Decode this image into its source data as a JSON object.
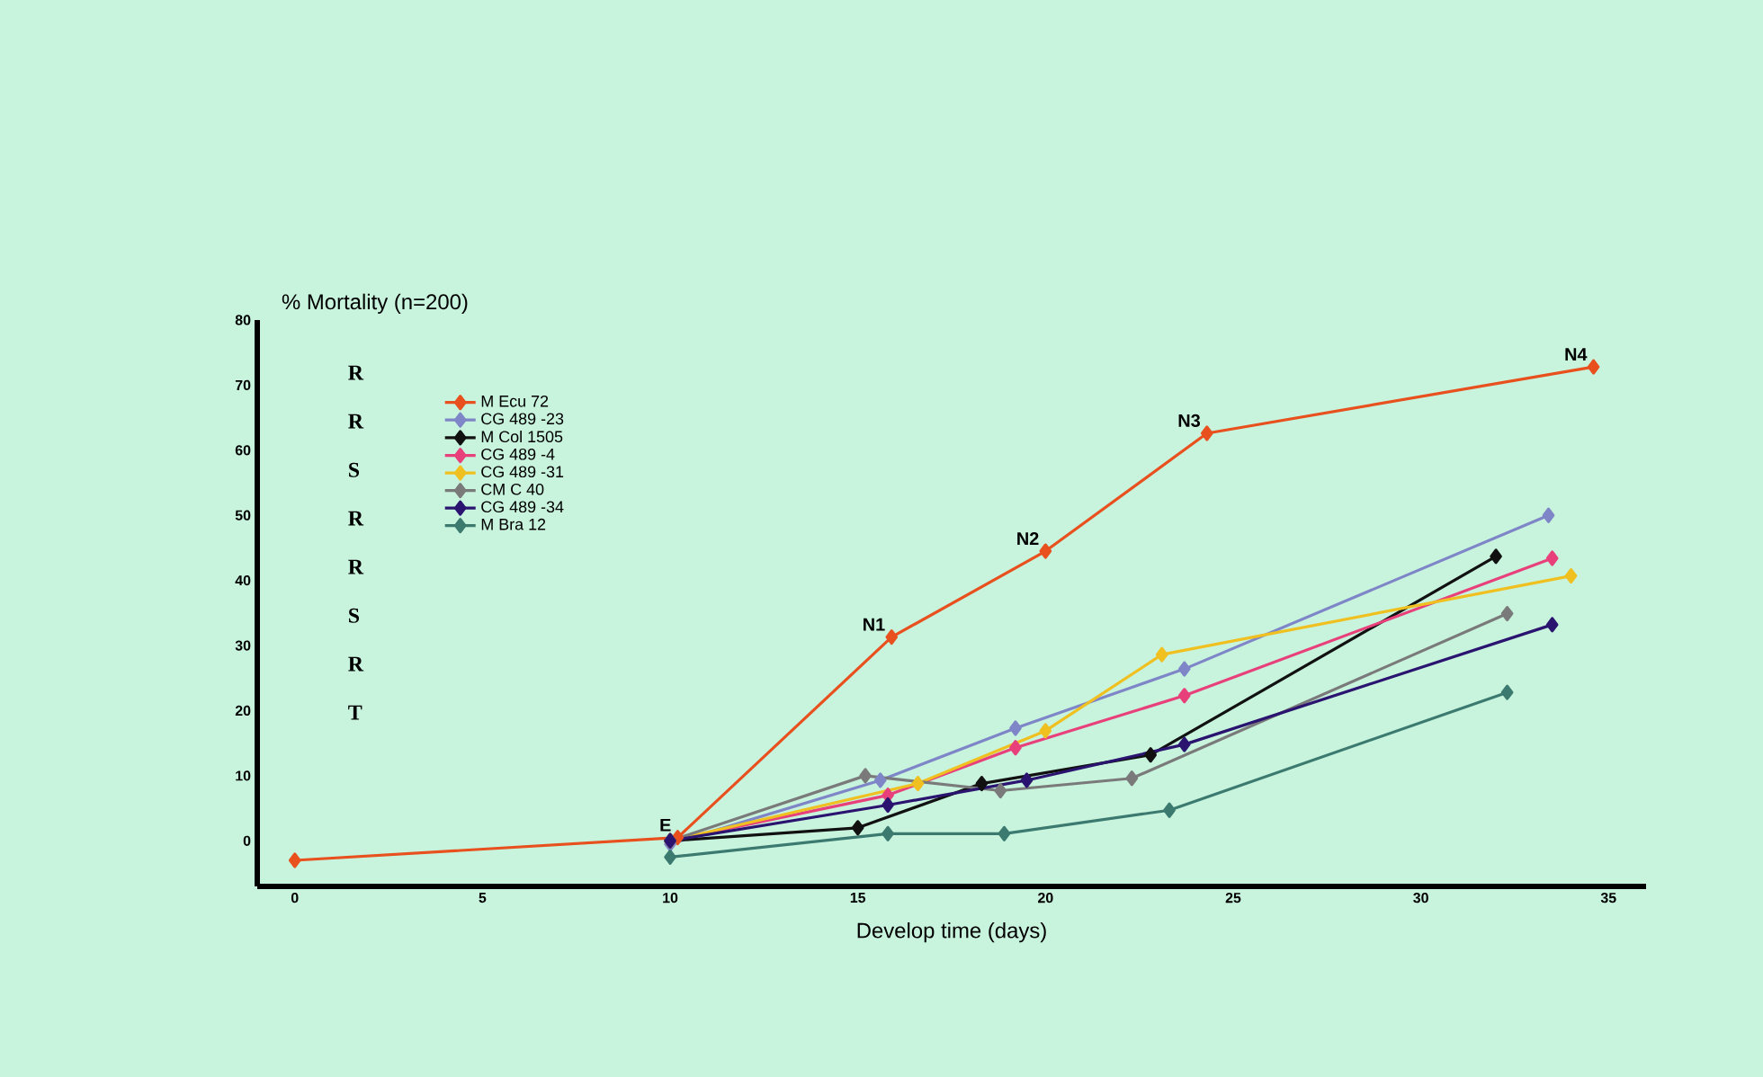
{
  "chart_data": {
    "type": "line",
    "xlabel": "Develop time (days)",
    "ylabel": "% Mortality (n=200)",
    "xlim": [
      -1,
      36
    ],
    "ylim": [
      -7,
      80
    ],
    "xticks": [
      0,
      5,
      10,
      15,
      20,
      25,
      30,
      35
    ],
    "yticks": [
      0,
      10,
      20,
      30,
      40,
      50,
      60,
      70,
      80
    ],
    "grid": false,
    "legend": "top left",
    "marker": "diamond",
    "line_style": "solid",
    "series": [
      {
        "name": "M Ecu 72",
        "color": "#e8501e",
        "x": [
          0,
          10.2,
          15.9,
          20,
          24.3,
          34.6
        ],
        "values": [
          -3,
          0.5,
          31.3,
          44.5,
          62.6,
          72.8
        ]
      },
      {
        "name": "CG 489  -23",
        "color": "#7f86c8",
        "x": [
          10,
          15.6,
          19.2,
          23.7,
          33.4
        ],
        "values": [
          -0.5,
          9.3,
          17.3,
          26.4,
          50
        ]
      },
      {
        "name": "M Col 1505",
        "color": "#111111",
        "x": [
          10,
          15,
          18.3,
          22.8,
          32
        ],
        "values": [
          0,
          2,
          8.8,
          13.2,
          43.7
        ]
      },
      {
        "name": "CG 489  -4",
        "color": "#e8407a",
        "x": [
          10,
          15.8,
          19.2,
          23.7,
          33.5
        ],
        "values": [
          0,
          7,
          14.3,
          22.3,
          43.4
        ]
      },
      {
        "name": "CG 489  -31",
        "color": "#f0c020",
        "x": [
          10,
          16.6,
          20,
          23.1,
          34
        ],
        "values": [
          0,
          8.8,
          16.9,
          28.6,
          40.7
        ]
      },
      {
        "name": "CM C 40",
        "color": "#7a7a7a",
        "x": [
          10,
          15.2,
          18.8,
          22.3,
          32.3
        ],
        "values": [
          0,
          10,
          7.7,
          9.6,
          34.9
        ]
      },
      {
        "name": "CG 489  -34",
        "color": "#2a1470",
        "x": [
          10,
          15.8,
          19.5,
          23.7,
          33.5
        ],
        "values": [
          0,
          5.5,
          9.3,
          14.8,
          33.2
        ]
      },
      {
        "name": "M Bra 12",
        "color": "#3c7a70",
        "x": [
          10,
          15.8,
          18.9,
          23.3,
          32.3
        ],
        "values": [
          -2.5,
          1.1,
          1.1,
          4.7,
          22.8
        ]
      }
    ],
    "annotations": [
      "R",
      "R",
      "S",
      "R",
      "R",
      "S",
      "R",
      "T",
      {
        "text": "E",
        "x": 10.2,
        "y": 0.5
      },
      {
        "text": "N1",
        "x": 15.9,
        "y": 31.3
      },
      {
        "text": "N2",
        "x": 20,
        "y": 44.5
      },
      {
        "text": "N3",
        "x": 24.3,
        "y": 62.6
      },
      {
        "text": "N4",
        "x": 34.6,
        "y": 72.8
      }
    ]
  }
}
